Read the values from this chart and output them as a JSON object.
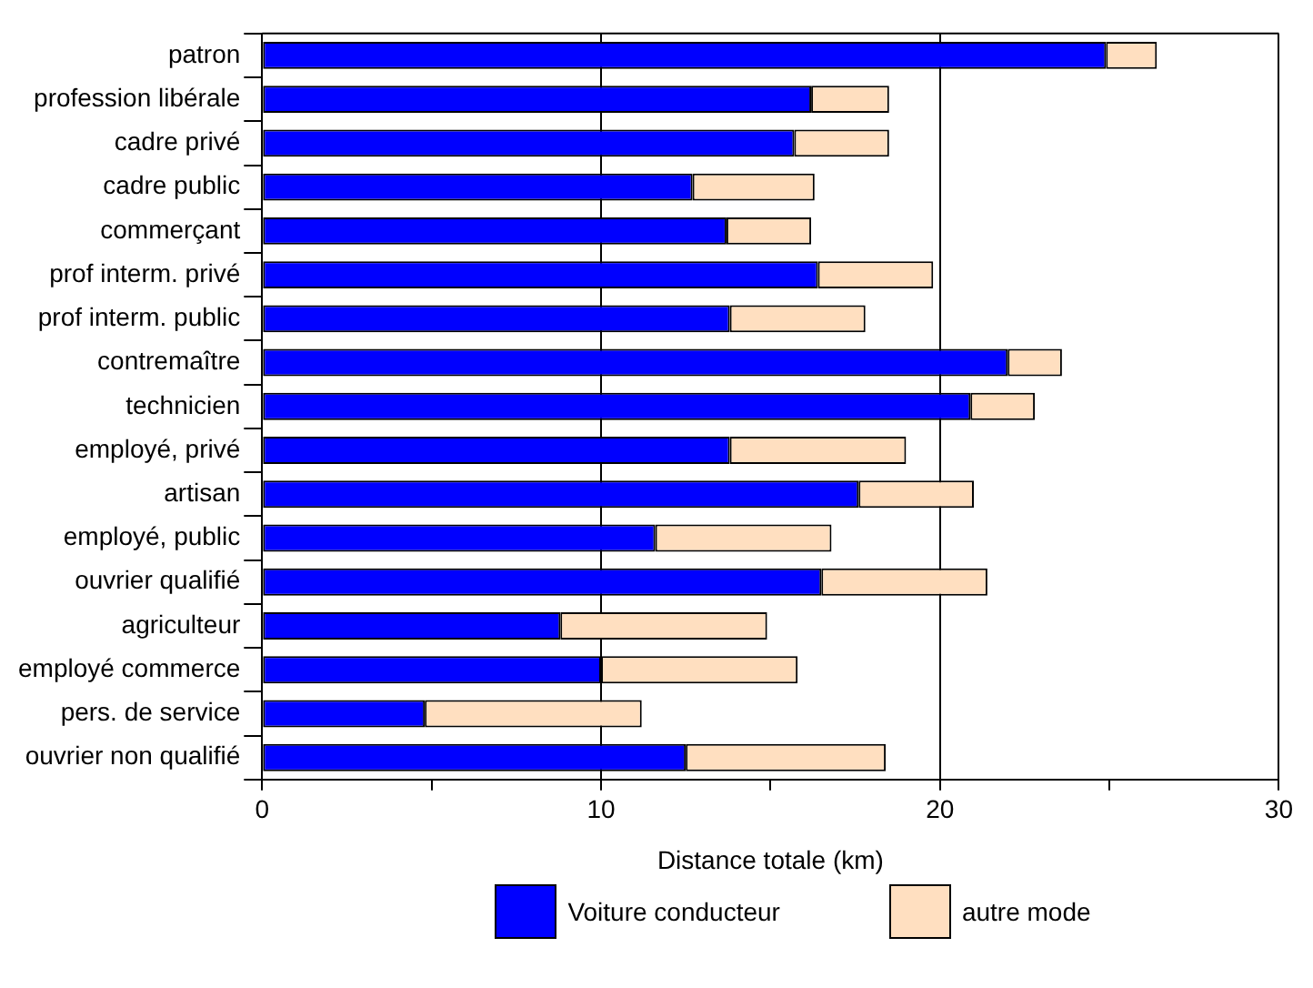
{
  "chart_data": {
    "type": "bar",
    "orientation": "horizontal",
    "stacked": true,
    "xlabel": "Distance totale (km)",
    "categories": [
      "patron",
      "profession libérale",
      "cadre privé",
      "cadre public",
      "commerçant",
      "prof interm. privé",
      "prof interm. public",
      "contremaître",
      "technicien",
      "employé, privé",
      "artisan",
      "employé, public",
      "ouvrier qualifié",
      "agriculteur",
      "employé commerce",
      "pers. de service",
      "ouvrier non qualifié"
    ],
    "series": [
      {
        "name": "Voiture conducteur",
        "color": "#0000ff",
        "values": [
          24.9,
          16.2,
          15.7,
          12.7,
          13.7,
          16.4,
          13.8,
          22.0,
          20.9,
          13.8,
          17.6,
          11.6,
          16.5,
          8.8,
          10.0,
          4.8,
          12.5
        ]
      },
      {
        "name": "autre mode",
        "color": "#ffdfc0",
        "values": [
          1.5,
          2.3,
          2.8,
          3.6,
          2.5,
          3.4,
          4.0,
          1.6,
          1.9,
          5.2,
          3.4,
          5.2,
          4.9,
          6.1,
          5.8,
          6.4,
          5.9
        ]
      }
    ],
    "xlim": [
      0,
      30
    ],
    "xticks": [
      0,
      {
        "value": 5,
        "label": null
      },
      10,
      {
        "value": 15,
        "label": null
      },
      20,
      {
        "value": 25,
        "label": null
      },
      30
    ],
    "grid": "x",
    "legend": "bottom"
  }
}
